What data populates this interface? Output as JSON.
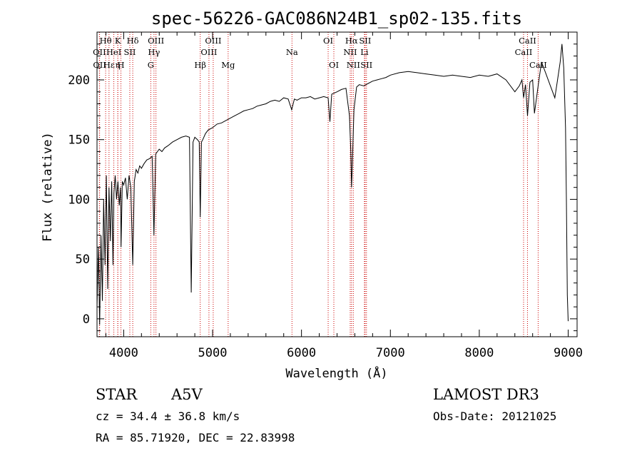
{
  "chart_data": {
    "type": "line",
    "title": "spec-56226-GAC086N24B1_sp02-135.fits",
    "xlabel": "Wavelength (Å)",
    "ylabel": "Flux (relative)",
    "xlim": [
      3700,
      9100
    ],
    "ylim": [
      -15,
      240
    ],
    "x_ticks": [
      4000,
      5000,
      6000,
      7000,
      8000,
      9000
    ],
    "y_ticks": [
      0,
      50,
      100,
      150,
      200
    ],
    "x_tick_labels": [
      "4000",
      "5000",
      "6000",
      "7000",
      "8000",
      "9000"
    ],
    "y_tick_labels": [
      "0",
      "50",
      "100",
      "150",
      "200"
    ],
    "grid": false,
    "line_color": "#000000",
    "marker_color": "#cc0000",
    "spectrum": {
      "x": [
        3700,
        3715,
        3730,
        3745,
        3760,
        3775,
        3790,
        3805,
        3820,
        3835,
        3850,
        3865,
        3880,
        3890,
        3905,
        3920,
        3935,
        3950,
        3965,
        3970,
        3985,
        4000,
        4020,
        4040,
        4060,
        4080,
        4102,
        4120,
        4140,
        4160,
        4180,
        4200,
        4230,
        4260,
        4290,
        4320,
        4340,
        4360,
        4380,
        4400,
        4430,
        4460,
        4500,
        4550,
        4600,
        4650,
        4700,
        4740,
        4760,
        4780,
        4800,
        4830,
        4850,
        4861,
        4875,
        4890,
        4920,
        4950,
        5000,
        5050,
        5100,
        5150,
        5200,
        5250,
        5300,
        5350,
        5400,
        5450,
        5500,
        5550,
        5600,
        5650,
        5700,
        5750,
        5800,
        5850,
        5890,
        5920,
        5950,
        6000,
        6050,
        6100,
        6150,
        6200,
        6250,
        6300,
        6320,
        6340,
        6400,
        6450,
        6500,
        6540,
        6555,
        6563,
        6570,
        6590,
        6620,
        6650,
        6700,
        6750,
        6800,
        6850,
        6900,
        6950,
        7000,
        7100,
        7200,
        7300,
        7400,
        7500,
        7600,
        7700,
        7800,
        7900,
        8000,
        8100,
        8200,
        8300,
        8400,
        8450,
        8480,
        8498,
        8520,
        8542,
        8570,
        8600,
        8620,
        8662,
        8700,
        8750,
        8800,
        8850,
        8880,
        8910,
        8930,
        8950,
        8970,
        8980,
        8990,
        9000
      ],
      "y": [
        10,
        60,
        -5,
        70,
        15,
        100,
        45,
        120,
        25,
        110,
        65,
        115,
        45,
        105,
        120,
        100,
        115,
        95,
        110,
        60,
        115,
        112,
        118,
        100,
        120,
        110,
        45,
        115,
        125,
        122,
        128,
        126,
        130,
        133,
        134,
        136,
        70,
        138,
        140,
        142,
        140,
        143,
        145,
        148,
        150,
        152,
        153,
        152,
        22,
        148,
        152,
        150,
        148,
        85,
        148,
        150,
        155,
        158,
        160,
        163,
        164,
        166,
        168,
        170,
        172,
        174,
        175,
        176,
        178,
        179,
        180,
        182,
        183,
        182,
        185,
        184,
        175,
        184,
        183,
        185,
        185,
        186,
        184,
        185,
        186,
        185,
        165,
        188,
        190,
        192,
        193,
        170,
        140,
        110,
        125,
        175,
        194,
        196,
        195,
        197,
        199,
        200,
        201,
        202,
        204,
        206,
        207,
        206,
        205,
        204,
        203,
        204,
        203,
        202,
        204,
        203,
        205,
        200,
        190,
        195,
        200,
        185,
        196,
        170,
        198,
        200,
        172,
        195,
        215,
        205,
        195,
        185,
        200,
        215,
        230,
        210,
        160,
        100,
        20,
        -2
      ]
    },
    "line_markers": [
      {
        "label": "Hθ",
        "x": 3797,
        "row": 1
      },
      {
        "label": "OII",
        "x": 3727,
        "row": 2
      },
      {
        "label": "OII",
        "x": 3729,
        "row": 3
      },
      {
        "label": "Hε",
        "x": 3835,
        "row": 3
      },
      {
        "label": "HeI",
        "x": 3889,
        "row": 2
      },
      {
        "label": "K",
        "x": 3934,
        "row": 1
      },
      {
        "label": "η",
        "x": 3934,
        "row": 3
      },
      {
        "label": "SII",
        "x": 4069,
        "row": 2
      },
      {
        "label": "H",
        "x": 3969,
        "row": 3
      },
      {
        "label": "Hδ",
        "x": 4102,
        "row": 1
      },
      {
        "label": "OIII",
        "x": 4363,
        "row": 1
      },
      {
        "label": "Hγ",
        "x": 4341,
        "row": 2
      },
      {
        "label": "G",
        "x": 4305,
        "row": 3
      },
      {
        "label": "OIII",
        "x": 5007,
        "row": 1
      },
      {
        "label": "OIII",
        "x": 4959,
        "row": 2
      },
      {
        "label": "Hβ",
        "x": 4861,
        "row": 3
      },
      {
        "label": "Mg",
        "x": 5175,
        "row": 3
      },
      {
        "label": "Na",
        "x": 5893,
        "row": 2
      },
      {
        "label": "OI",
        "x": 6300,
        "row": 1
      },
      {
        "label": "OI",
        "x": 6364,
        "row": 3
      },
      {
        "label": "Hα",
        "x": 6563,
        "row": 1
      },
      {
        "label": "SII",
        "x": 6716,
        "row": 1
      },
      {
        "label": "NII",
        "x": 6548,
        "row": 2
      },
      {
        "label": "Li",
        "x": 6708,
        "row": 2
      },
      {
        "label": "NII",
        "x": 6583,
        "row": 3
      },
      {
        "label": "SII",
        "x": 6731,
        "row": 3
      },
      {
        "label": "CaII",
        "x": 8542,
        "row": 1
      },
      {
        "label": "CaII",
        "x": 8498,
        "row": 2
      },
      {
        "label": "CaII",
        "x": 8662,
        "row": 3
      }
    ]
  },
  "info": {
    "object_type": "STAR",
    "subclass": "A5V",
    "survey": "LAMOST DR3",
    "redshift_line": "cz = 34.4 ± 36.8 km/s",
    "obs_date": "Obs-Date: 20121025",
    "coords": "RA =  85.71920, DEC =  22.83998"
  }
}
